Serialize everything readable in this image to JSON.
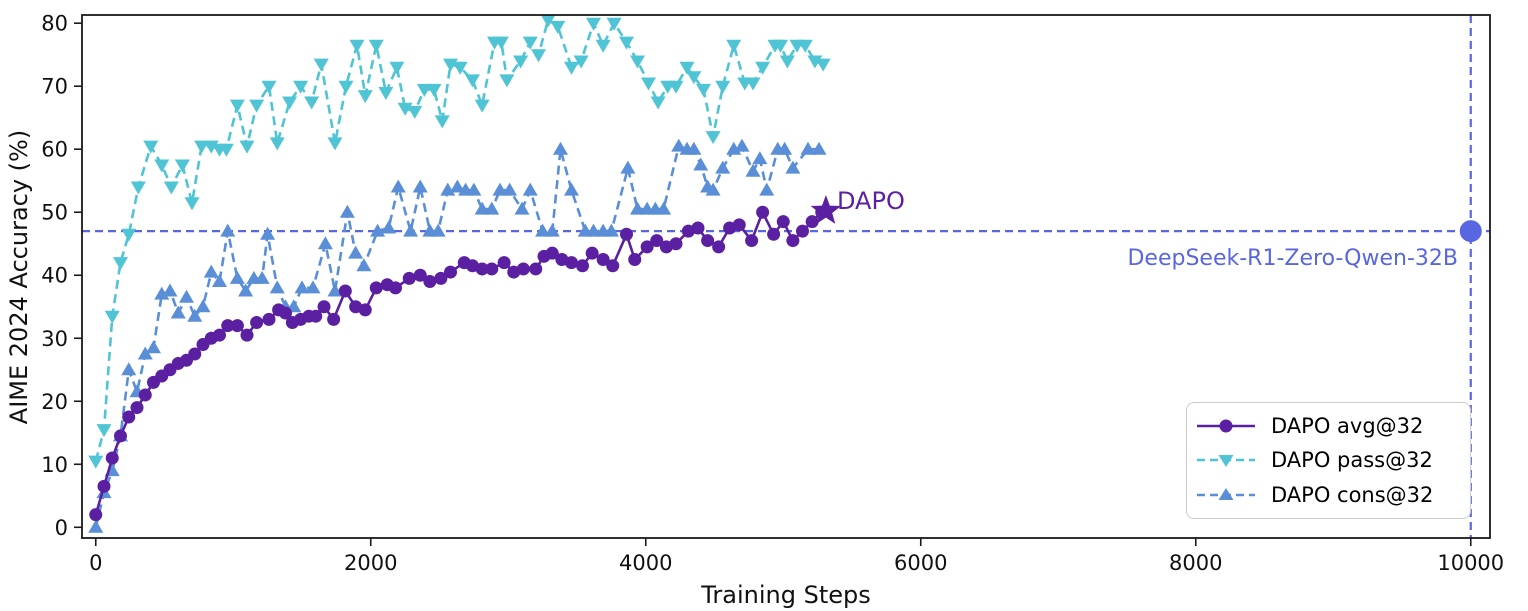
{
  "chart_data": {
    "type": "line",
    "title": "",
    "xlabel": "Training Steps",
    "ylabel": "AIME 2024 Accuracy (%)",
    "xlim": [
      -100,
      10140
    ],
    "ylim": [
      -1.7,
      81.3
    ],
    "xticks": [
      0,
      2000,
      4000,
      6000,
      8000,
      10000
    ],
    "yticks": [
      0,
      10,
      20,
      30,
      40,
      50,
      60,
      70,
      80
    ],
    "grid": false,
    "legend_position": "lower right",
    "colors": {
      "avg": "#5B1FA2",
      "pass": "#4FC4D4",
      "cons": "#5A8FD8",
      "baseline": "#5966E2",
      "text": "#111111"
    },
    "series": [
      {
        "name": "DAPO avg@32",
        "color": "#5B1FA2",
        "linestyle": "solid",
        "marker": "circle",
        "points": [
          [
            0,
            2
          ],
          [
            60,
            6.5
          ],
          [
            120,
            11
          ],
          [
            180,
            14.5
          ],
          [
            240,
            17.5
          ],
          [
            300,
            19
          ],
          [
            360,
            21
          ],
          [
            420,
            23
          ],
          [
            480,
            24
          ],
          [
            540,
            25
          ],
          [
            600,
            26
          ],
          [
            660,
            26.5
          ],
          [
            720,
            27.5
          ],
          [
            780,
            29
          ],
          [
            840,
            30
          ],
          [
            900,
            30.5
          ],
          [
            960,
            32
          ],
          [
            1030,
            32
          ],
          [
            1100,
            30.5
          ],
          [
            1170,
            32.5
          ],
          [
            1260,
            33
          ],
          [
            1330,
            34.5
          ],
          [
            1380,
            34
          ],
          [
            1430,
            32.5
          ],
          [
            1490,
            33
          ],
          [
            1550,
            33.5
          ],
          [
            1600,
            33.5
          ],
          [
            1660,
            35
          ],
          [
            1730,
            33
          ],
          [
            1815,
            37.5
          ],
          [
            1890,
            35
          ],
          [
            1960,
            34.5
          ],
          [
            2040,
            38
          ],
          [
            2120,
            38.5
          ],
          [
            2180,
            38
          ],
          [
            2280,
            39.5
          ],
          [
            2360,
            40
          ],
          [
            2430,
            39
          ],
          [
            2510,
            39.5
          ],
          [
            2580,
            40.5
          ],
          [
            2680,
            42
          ],
          [
            2740,
            41.5
          ],
          [
            2810,
            41
          ],
          [
            2880,
            41
          ],
          [
            2970,
            42
          ],
          [
            3040,
            40.5
          ],
          [
            3110,
            41
          ],
          [
            3200,
            41
          ],
          [
            3260,
            43
          ],
          [
            3320,
            43.5
          ],
          [
            3390,
            42.5
          ],
          [
            3460,
            42
          ],
          [
            3540,
            41.5
          ],
          [
            3610,
            43.5
          ],
          [
            3690,
            42.5
          ],
          [
            3760,
            41.5
          ],
          [
            3860,
            46.5
          ],
          [
            3920,
            42.5
          ],
          [
            4010,
            44.5
          ],
          [
            4080,
            45.5
          ],
          [
            4150,
            44.5
          ],
          [
            4220,
            45
          ],
          [
            4310,
            47
          ],
          [
            4380,
            47.5
          ],
          [
            4450,
            45.5
          ],
          [
            4530,
            44.5
          ],
          [
            4610,
            47.5
          ],
          [
            4680,
            48
          ],
          [
            4770,
            45.5
          ],
          [
            4850,
            50
          ],
          [
            4930,
            46.5
          ],
          [
            5000,
            48.5
          ],
          [
            5070,
            45.5
          ],
          [
            5140,
            47
          ],
          [
            5210,
            48.5
          ],
          [
            5280,
            50
          ]
        ]
      },
      {
        "name": "DAPO pass@32",
        "color": "#4FC4D4",
        "linestyle": "dashed",
        "marker": "triangle-down",
        "points": [
          [
            0,
            10.5
          ],
          [
            60,
            15.5
          ],
          [
            120,
            33.5
          ],
          [
            180,
            42
          ],
          [
            240,
            46.5
          ],
          [
            310,
            54
          ],
          [
            400,
            60.5
          ],
          [
            480,
            57.5
          ],
          [
            550,
            54
          ],
          [
            630,
            57.5
          ],
          [
            700,
            51.5
          ],
          [
            770,
            60.5
          ],
          [
            840,
            60.5
          ],
          [
            900,
            60
          ],
          [
            950,
            60
          ],
          [
            1030,
            67
          ],
          [
            1100,
            60.5
          ],
          [
            1170,
            67
          ],
          [
            1260,
            70
          ],
          [
            1320,
            61
          ],
          [
            1410,
            67.5
          ],
          [
            1490,
            70
          ],
          [
            1570,
            67.5
          ],
          [
            1640,
            73.5
          ],
          [
            1740,
            61
          ],
          [
            1820,
            70
          ],
          [
            1900,
            76.5
          ],
          [
            1960,
            68.5
          ],
          [
            2040,
            76.5
          ],
          [
            2110,
            69
          ],
          [
            2190,
            73
          ],
          [
            2250,
            66.5
          ],
          [
            2320,
            66
          ],
          [
            2390,
            69.5
          ],
          [
            2460,
            69.5
          ],
          [
            2520,
            64.5
          ],
          [
            2580,
            73.5
          ],
          [
            2650,
            73
          ],
          [
            2740,
            71
          ],
          [
            2810,
            67
          ],
          [
            2900,
            77
          ],
          [
            2950,
            77
          ],
          [
            2990,
            71
          ],
          [
            3090,
            74
          ],
          [
            3160,
            77
          ],
          [
            3220,
            75
          ],
          [
            3290,
            80.5
          ],
          [
            3360,
            79.5
          ],
          [
            3460,
            73
          ],
          [
            3530,
            74
          ],
          [
            3620,
            80
          ],
          [
            3690,
            76.5
          ],
          [
            3770,
            80
          ],
          [
            3860,
            77
          ],
          [
            3940,
            74
          ],
          [
            4020,
            70.5
          ],
          [
            4090,
            67.5
          ],
          [
            4160,
            70
          ],
          [
            4220,
            70
          ],
          [
            4300,
            73
          ],
          [
            4350,
            71.5
          ],
          [
            4420,
            69.5
          ],
          [
            4490,
            62
          ],
          [
            4560,
            70
          ],
          [
            4640,
            76.5
          ],
          [
            4720,
            70.5
          ],
          [
            4780,
            70.5
          ],
          [
            4850,
            73
          ],
          [
            4940,
            76.5
          ],
          [
            4980,
            76.5
          ],
          [
            5030,
            74
          ],
          [
            5100,
            76.5
          ],
          [
            5160,
            76.5
          ],
          [
            5230,
            74
          ],
          [
            5290,
            73.5
          ]
        ]
      },
      {
        "name": "DAPO cons@32",
        "color": "#5A8FD8",
        "linestyle": "dashed",
        "marker": "triangle-up",
        "points": [
          [
            0,
            0
          ],
          [
            60,
            5.5
          ],
          [
            120,
            9
          ],
          [
            180,
            14.5
          ],
          [
            240,
            25
          ],
          [
            300,
            21.5
          ],
          [
            360,
            27.5
          ],
          [
            420,
            28.5
          ],
          [
            480,
            37
          ],
          [
            540,
            37.5
          ],
          [
            600,
            34
          ],
          [
            660,
            36.5
          ],
          [
            720,
            33.5
          ],
          [
            780,
            35
          ],
          [
            840,
            40.5
          ],
          [
            900,
            39
          ],
          [
            960,
            47
          ],
          [
            1030,
            39.5
          ],
          [
            1090,
            37.5
          ],
          [
            1150,
            39.5
          ],
          [
            1210,
            39.5
          ],
          [
            1250,
            46.5
          ],
          [
            1320,
            38
          ],
          [
            1380,
            35
          ],
          [
            1440,
            35
          ],
          [
            1500,
            38
          ],
          [
            1580,
            38
          ],
          [
            1670,
            45
          ],
          [
            1740,
            37.5
          ],
          [
            1830,
            50
          ],
          [
            1890,
            43.5
          ],
          [
            1950,
            41.5
          ],
          [
            2050,
            47
          ],
          [
            2130,
            47.5
          ],
          [
            2200,
            54
          ],
          [
            2290,
            47
          ],
          [
            2360,
            54
          ],
          [
            2430,
            47
          ],
          [
            2490,
            47
          ],
          [
            2560,
            53.5
          ],
          [
            2630,
            54
          ],
          [
            2690,
            53.5
          ],
          [
            2750,
            53.5
          ],
          [
            2810,
            50.5
          ],
          [
            2880,
            50.5
          ],
          [
            2940,
            53.5
          ],
          [
            3010,
            53.5
          ],
          [
            3100,
            50.5
          ],
          [
            3160,
            53.5
          ],
          [
            3250,
            47
          ],
          [
            3320,
            47
          ],
          [
            3380,
            60
          ],
          [
            3460,
            53.5
          ],
          [
            3560,
            47
          ],
          [
            3620,
            47
          ],
          [
            3690,
            47
          ],
          [
            3750,
            47
          ],
          [
            3870,
            57
          ],
          [
            3940,
            50.5
          ],
          [
            4010,
            50.5
          ],
          [
            4070,
            50.5
          ],
          [
            4130,
            50.5
          ],
          [
            4240,
            60.5
          ],
          [
            4300,
            60
          ],
          [
            4350,
            60
          ],
          [
            4400,
            57.5
          ],
          [
            4450,
            54
          ],
          [
            4490,
            53.5
          ],
          [
            4560,
            57
          ],
          [
            4640,
            60
          ],
          [
            4700,
            60.5
          ],
          [
            4780,
            56.5
          ],
          [
            4830,
            58.5
          ],
          [
            4880,
            53.5
          ],
          [
            4960,
            60
          ],
          [
            5010,
            60
          ],
          [
            5070,
            57
          ],
          [
            5180,
            60
          ],
          [
            5260,
            60
          ]
        ]
      }
    ],
    "baseline": {
      "label": "DeepSeek-R1-Zero-Qwen-32B",
      "hline_y": 47,
      "vline_x": 10000,
      "point": [
        10000,
        47
      ],
      "color": "#5966E2"
    },
    "annotation": {
      "text": "DAPO",
      "xy": [
        5310,
        50.2
      ],
      "marker": "star",
      "color": "#5B1FA2"
    }
  }
}
